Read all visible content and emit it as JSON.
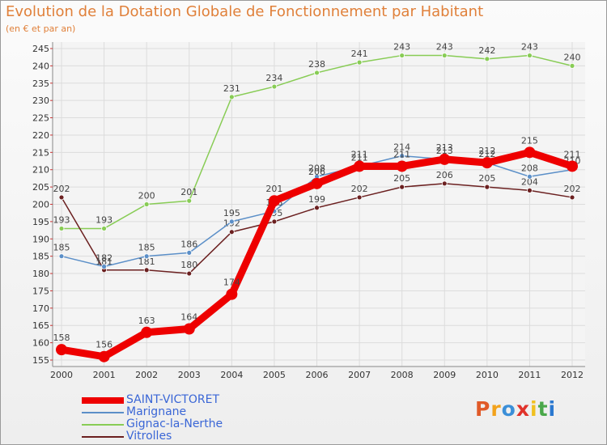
{
  "chart_data": {
    "type": "line",
    "title": "Evolution de la Dotation Globale de Fonctionnement par Habitant",
    "subtitle": "(en € et par an)",
    "xlabel": "",
    "ylabel": "",
    "ylim": [
      155,
      245
    ],
    "ytick_step": 5,
    "grid": true,
    "categories": [
      "2000",
      "2001",
      "2002",
      "2003",
      "2004",
      "2005",
      "2006",
      "2007",
      "2008",
      "2009",
      "2010",
      "2011",
      "2012"
    ],
    "series": [
      {
        "name": "Gignac-la-Nerthe",
        "color": "#88cc55",
        "values": [
          193,
          193,
          200,
          201,
          231,
          234,
          238,
          241,
          243,
          243,
          242,
          243,
          240
        ]
      },
      {
        "name": "Vitrolles",
        "color": "#6b2020",
        "values": [
          202,
          181,
          181,
          180,
          192,
          195,
          199,
          202,
          205,
          206,
          205,
          204,
          202
        ]
      },
      {
        "name": "Marignane",
        "color": "#5b8fc8",
        "values": [
          185,
          182,
          185,
          186,
          195,
          198,
          208,
          211,
          214,
          213,
          212,
          208,
          210
        ]
      },
      {
        "name": "SAINT-VICTORET",
        "color": "#ee0000",
        "values": [
          158,
          156,
          163,
          164,
          174,
          201,
          206,
          211,
          211,
          213,
          212,
          215,
          211
        ]
      }
    ],
    "legend_order": [
      "SAINT-VICTORET",
      "Marignane",
      "Gignac-la-Nerthe",
      "Vitrolles"
    ]
  },
  "brand": {
    "letters": [
      "P",
      "r",
      "o",
      "x",
      "i",
      "t",
      "i"
    ],
    "colors": [
      "#e05a28",
      "#f2a21c",
      "#3b8fd8",
      "#e0322a",
      "#f0c020",
      "#4aa84a",
      "#2a78d0"
    ]
  }
}
